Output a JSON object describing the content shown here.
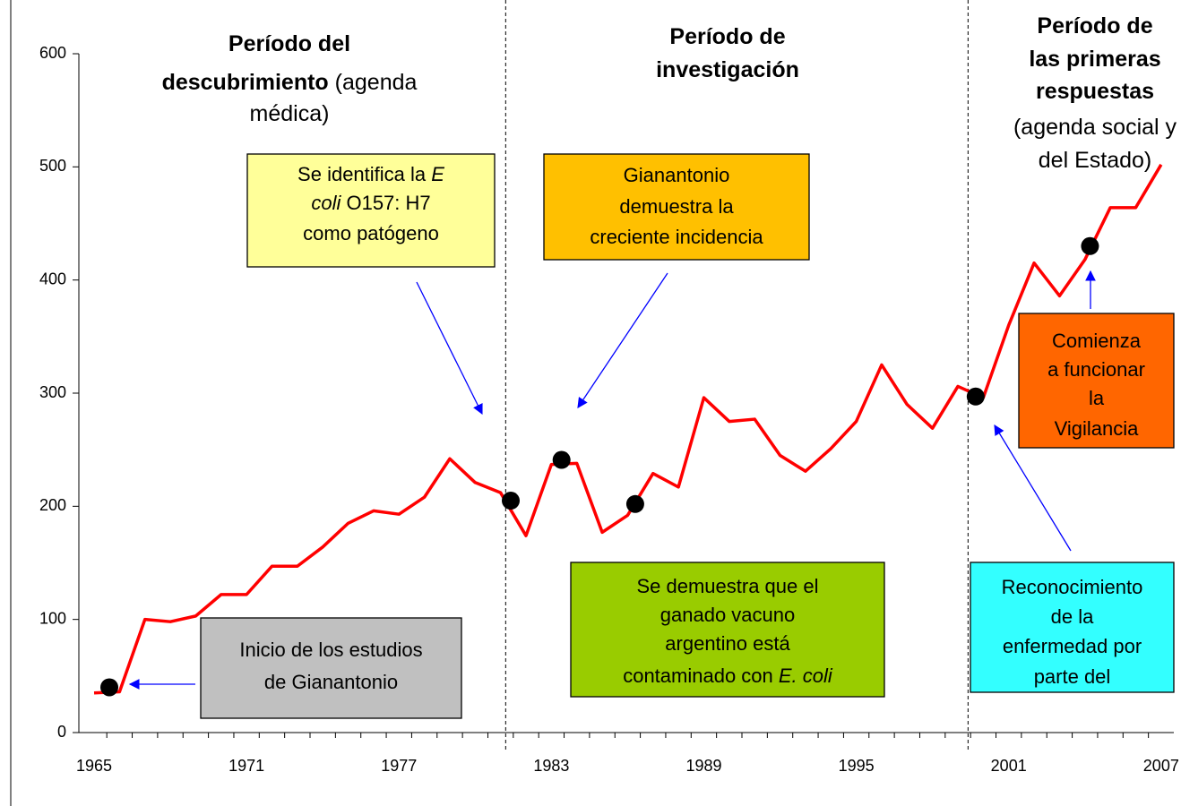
{
  "chart_data": {
    "type": "line",
    "x": [
      1965,
      1966,
      1967,
      1968,
      1969,
      1970,
      1971,
      1972,
      1973,
      1974,
      1975,
      1976,
      1977,
      1978,
      1979,
      1980,
      1981,
      1982,
      1983,
      1984,
      1985,
      1986,
      1987,
      1988,
      1989,
      1990,
      1991,
      1992,
      1993,
      1994,
      1995,
      1996,
      1997,
      1998,
      1999,
      2000,
      2001,
      2002,
      2003,
      2004,
      2005,
      2006,
      2007
    ],
    "series": [
      {
        "color": "#ff0000",
        "values": [
          35,
          36,
          100,
          98,
          103,
          122,
          122,
          147,
          147,
          164,
          185,
          196,
          193,
          208,
          242,
          221,
          212,
          174,
          237,
          238,
          177,
          192,
          229,
          217,
          296,
          275,
          277,
          245,
          231,
          251,
          275,
          325,
          290,
          269,
          306,
          296,
          360,
          415,
          386,
          418,
          464,
          464,
          502
        ]
      },
      {
        "color": "#000000",
        "x": [
          1965.6,
          1981.4,
          1983.4,
          1986.3,
          1999.7,
          2004.2
        ],
        "values": [
          40,
          205,
          241,
          202,
          297,
          430
        ]
      }
    ],
    "xlim": [
      1964.4,
      2007.5
    ],
    "xticks": [
      1965,
      1971,
      1977,
      1983,
      1989,
      1995,
      2001,
      2007
    ],
    "ylim": [
      0,
      600
    ],
    "yticks": [
      0,
      100,
      200,
      300,
      400,
      500,
      600
    ],
    "vlines": [
      1981.2,
      1999.4
    ],
    "headings": [
      {
        "lines": [
          [
            {
              "t": "Período del",
              "b": true
            }
          ],
          [
            {
              "t": "descubrimiento",
              "b": true
            },
            {
              "t": " (agenda"
            }
          ],
          [
            {
              "t": "médica)"
            }
          ]
        ]
      },
      {
        "lines": [
          [
            {
              "t": "Período de",
              "b": true
            }
          ],
          [
            {
              "t": "investigación",
              "b": true
            }
          ]
        ]
      },
      {
        "lines": [
          [
            {
              "t": "Período de",
              "b": true
            }
          ],
          [
            {
              "t": "las primeras",
              "b": true
            }
          ],
          [
            {
              "t": "respuestas",
              "b": true
            }
          ],
          [
            {
              "t": "(agenda social y"
            }
          ],
          [
            {
              "t": "del Estado)"
            }
          ]
        ]
      }
    ],
    "annotations": [
      {
        "color": "#ffff99",
        "lines": [
          [
            {
              "t": "Se identifica la "
            },
            {
              "t": "E",
              "i": true
            }
          ],
          [
            {
              "t": "coli",
              "i": true
            },
            {
              "t": " O157: H7"
            }
          ],
          [
            {
              "t": "como patógeno"
            }
          ]
        ]
      },
      {
        "color": "#ffc000",
        "lines": [
          [
            {
              "t": "Gianantonio"
            }
          ],
          [
            {
              "t": "demuestra la"
            }
          ],
          [
            {
              "t": "creciente incidencia"
            }
          ]
        ]
      },
      {
        "color": "#99cc00",
        "lines": [
          [
            {
              "t": "Se demuestra que el"
            }
          ],
          [
            {
              "t": "ganado vacuno"
            }
          ],
          [
            {
              "t": "argentino está"
            }
          ],
          [
            {
              "t": "contaminado con "
            },
            {
              "t": "E. coli",
              "i": true
            }
          ]
        ]
      },
      {
        "color": "#c0c0c0",
        "lines": [
          [
            {
              "t": "Inicio de los estudios"
            }
          ],
          [
            {
              "t": "de Gianantonio"
            }
          ]
        ]
      },
      {
        "color": "#33ffff",
        "lines": [
          [
            {
              "t": "Reconocimiento"
            }
          ],
          [
            {
              "t": "de la"
            }
          ],
          [
            {
              "t": "enfermedad por"
            }
          ],
          [
            {
              "t": "parte del"
            }
          ]
        ]
      },
      {
        "color": "#ff6600",
        "lines": [
          [
            {
              "t": "Comienza"
            }
          ],
          [
            {
              "t": "a funcionar"
            }
          ],
          [
            {
              "t": "la"
            }
          ],
          [
            {
              "t": "Vigilancia"
            }
          ]
        ]
      }
    ]
  }
}
